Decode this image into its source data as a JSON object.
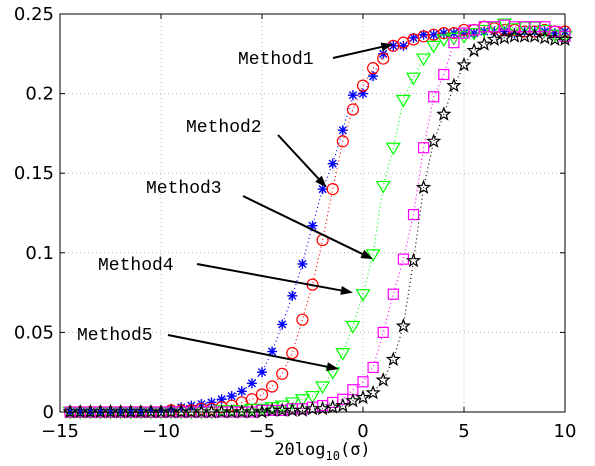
{
  "chart_data": {
    "type": "scatter",
    "title": "",
    "xlabel": "20log",
    "xlabel_sub": "10",
    "xlabel_tail": "(σ)",
    "ylabel": "",
    "xlim": [
      -15,
      10
    ],
    "ylim": [
      0,
      0.25
    ],
    "xticks": [
      -15,
      -10,
      -5,
      0,
      5,
      10
    ],
    "xtick_labels": [
      "−15",
      "−10",
      "−5",
      "0",
      "5",
      "10"
    ],
    "yticks": [
      0,
      0.05,
      0.1,
      0.15,
      0.2,
      0.25
    ],
    "ytick_labels": [
      "0",
      "0.05",
      "0.1",
      "0.15",
      "0.2",
      "0.25"
    ],
    "grid": true,
    "legend": "none",
    "series": [
      {
        "marker": "asterisk",
        "color": "#0000ff",
        "x": [
          -14.5,
          -14,
          -13.5,
          -13,
          -12.5,
          -12,
          -11.5,
          -11,
          -10.5,
          -10,
          -9.5,
          -9,
          -8.5,
          -8,
          -7.5,
          -7,
          -6.5,
          -6,
          -5.5,
          -5,
          -4.5,
          -4,
          -3.5,
          -3,
          -2.5,
          -2,
          -1.5,
          -1,
          -0.5,
          0,
          0.5,
          1,
          1.5,
          2,
          2.5,
          3,
          3.5,
          4,
          4.5,
          5,
          5.5,
          6,
          6.5,
          7,
          7.5,
          8,
          8.5,
          9,
          9.5,
          10
        ],
        "y": [
          0,
          0,
          0,
          0,
          0,
          0,
          0,
          0,
          0.001,
          0.001,
          0.002,
          0.003,
          0.004,
          0.005,
          0.006,
          0.008,
          0.01,
          0.013,
          0.018,
          0.025,
          0.038,
          0.055,
          0.073,
          0.093,
          0.117,
          0.14,
          0.156,
          0.177,
          0.199,
          0.2,
          0.211,
          0.225,
          0.23,
          0.23,
          0.235,
          0.237,
          0.237,
          0.238,
          0.238,
          0.238,
          0.238,
          0.239,
          0.239,
          0.239,
          0.238,
          0.239,
          0.239,
          0.239,
          0.238,
          0.239
        ]
      },
      {
        "marker": "circle",
        "color": "#ff0000",
        "x": [
          -14.5,
          -14,
          -13.5,
          -13,
          -12.5,
          -12,
          -11.5,
          -11,
          -10.5,
          -10,
          -9.5,
          -9,
          -8.5,
          -8,
          -7.5,
          -7,
          -6.5,
          -6,
          -5.5,
          -5,
          -4.5,
          -4,
          -3.5,
          -3,
          -2.5,
          -2,
          -1.5,
          -1,
          -0.5,
          0,
          0.5,
          1,
          1.5,
          2,
          2.5,
          3,
          3.5,
          4,
          4.5,
          5,
          5.5,
          6,
          6.5,
          7,
          7.5,
          8,
          8.5,
          9,
          9.5,
          10
        ],
        "y": [
          0,
          0,
          0,
          0,
          0,
          0,
          0,
          0,
          0,
          0,
          0.001,
          0.001,
          0.001,
          0.002,
          0.002,
          0.003,
          0.004,
          0.006,
          0.008,
          0.011,
          0.016,
          0.024,
          0.037,
          0.058,
          0.08,
          0.108,
          0.14,
          0.17,
          0.19,
          0.205,
          0.216,
          0.222,
          0.23,
          0.232,
          0.234,
          0.236,
          0.237,
          0.238,
          0.238,
          0.24,
          0.24,
          0.242,
          0.241,
          0.24,
          0.24,
          0.239,
          0.239,
          0.24,
          0.239,
          0.239
        ]
      },
      {
        "marker": "triangle-down",
        "color": "#00ff00",
        "x": [
          -14.5,
          -14,
          -13.5,
          -13,
          -12.5,
          -12,
          -11.5,
          -11,
          -10.5,
          -10,
          -9.5,
          -9,
          -8.5,
          -8,
          -7.5,
          -7,
          -6.5,
          -6,
          -5.5,
          -5,
          -4.5,
          -4,
          -3.5,
          -3,
          -2.5,
          -2,
          -1.5,
          -1,
          -0.5,
          0,
          0.5,
          1,
          1.5,
          2,
          2.5,
          3,
          3.5,
          4,
          4.5,
          5,
          5.5,
          6,
          6.5,
          7,
          7.5,
          8,
          8.5,
          9,
          9.5,
          10
        ],
        "y": [
          0,
          0,
          0,
          0,
          0,
          0,
          0,
          0,
          0,
          0,
          0,
          0,
          0,
          0,
          0,
          0.001,
          0.001,
          0.001,
          0.002,
          0.002,
          0.003,
          0.004,
          0.006,
          0.008,
          0.01,
          0.016,
          0.025,
          0.037,
          0.054,
          0.074,
          0.099,
          0.142,
          0.166,
          0.196,
          0.21,
          0.222,
          0.23,
          0.234,
          0.235,
          0.236,
          0.238,
          0.24,
          0.242,
          0.244,
          0.241,
          0.242,
          0.242,
          0.24,
          0.237,
          0.236
        ]
      },
      {
        "marker": "square",
        "color": "#ff00ff",
        "x": [
          -14.5,
          -14,
          -13.5,
          -13,
          -12.5,
          -12,
          -11.5,
          -11,
          -10.5,
          -10,
          -9.5,
          -9,
          -8.5,
          -8,
          -7.5,
          -7,
          -6.5,
          -6,
          -5.5,
          -5,
          -4.5,
          -4,
          -3.5,
          -3,
          -2.5,
          -2,
          -1.5,
          -1,
          -0.5,
          0,
          0.5,
          1,
          1.5,
          2,
          2.5,
          3,
          3.5,
          4,
          4.5,
          5,
          5.5,
          6,
          6.5,
          7,
          7.5,
          8,
          8.5,
          9,
          9.5,
          10
        ],
        "y": [
          0,
          0,
          0,
          0,
          0,
          0,
          0,
          0,
          0,
          0,
          0,
          0,
          0,
          0,
          0,
          0,
          0,
          0,
          0,
          0.001,
          0.001,
          0.001,
          0.002,
          0.002,
          0.003,
          0.004,
          0.006,
          0.008,
          0.014,
          0.019,
          0.028,
          0.05,
          0.074,
          0.096,
          0.124,
          0.166,
          0.198,
          0.212,
          0.232,
          0.238,
          0.24,
          0.242,
          0.242,
          0.243,
          0.242,
          0.242,
          0.242,
          0.242,
          0.239,
          0.236
        ]
      },
      {
        "marker": "pentagram",
        "color": "#000000",
        "x": [
          -14.5,
          -14,
          -13.5,
          -13,
          -12.5,
          -12,
          -11.5,
          -11,
          -10.5,
          -10,
          -9.5,
          -9,
          -8.5,
          -8,
          -7.5,
          -7,
          -6.5,
          -6,
          -5.5,
          -5,
          -4.5,
          -4,
          -3.5,
          -3,
          -2.5,
          -2,
          -1.5,
          -1,
          -0.5,
          0,
          0.5,
          1,
          1.5,
          2,
          2.5,
          3,
          3.5,
          4,
          4.5,
          5,
          5.5,
          6,
          6.5,
          7,
          7.5,
          8,
          8.5,
          9,
          9.5,
          10
        ],
        "y": [
          0,
          0,
          0,
          0,
          0,
          0,
          0,
          0,
          0,
          0,
          0,
          0,
          0,
          0,
          0,
          0,
          0,
          0,
          0,
          0,
          0.001,
          0.001,
          0.001,
          0.001,
          0.002,
          0.002,
          0.003,
          0.004,
          0.007,
          0.009,
          0.012,
          0.02,
          0.033,
          0.054,
          0.095,
          0.141,
          0.17,
          0.187,
          0.205,
          0.218,
          0.227,
          0.231,
          0.234,
          0.235,
          0.236,
          0.236,
          0.236,
          0.235,
          0.234,
          0.234
        ]
      }
    ],
    "annotations": [
      {
        "text": "Method1",
        "x": 1.5,
        "y": 0.231
      },
      {
        "text": "Method2",
        "x": -1.8,
        "y": 0.141
      },
      {
        "text": "Method3",
        "x": 0.5,
        "y": 0.096
      },
      {
        "text": "Method4",
        "x": -0.5,
        "y": 0.075
      },
      {
        "text": "Method5",
        "x": -1.2,
        "y": 0.027
      }
    ]
  }
}
